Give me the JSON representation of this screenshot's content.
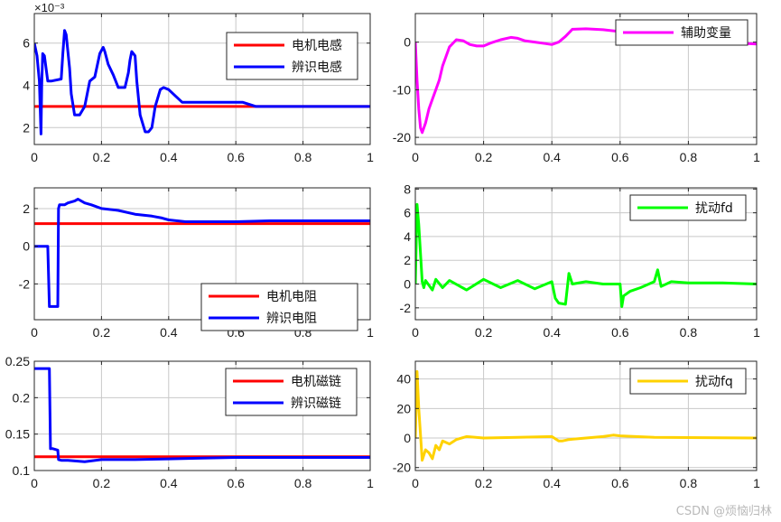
{
  "watermark": "CSDN @烦恼归林",
  "colors": {
    "red": "#ff0000",
    "blue": "#0000ff",
    "magenta": "#ff00ff",
    "green": "#00ff00",
    "yellow": "#ffd200",
    "grid": "#c8c8c8",
    "axis": "#262626"
  },
  "chart_data": [
    {
      "id": "inductance",
      "type": "line",
      "exponent_label": "×10⁻³",
      "xlim": [
        0,
        1
      ],
      "ylim": [
        1.2,
        7.4
      ],
      "xticks": [
        0,
        0.2,
        0.4,
        0.6,
        0.8,
        1
      ],
      "xtick_labels": [
        "0",
        "0.2",
        "0.4",
        "0.6",
        "0.8",
        "1"
      ],
      "yticks": [
        2,
        4,
        6
      ],
      "ytick_labels": [
        "2",
        "4",
        "6"
      ],
      "grid": true,
      "legend_position": "top-right",
      "series": [
        {
          "name": "电机电感",
          "color": "#ff0000",
          "x": [
            0,
            1
          ],
          "y": [
            3.0,
            3.0
          ]
        },
        {
          "name": "辨识电感",
          "color": "#0000ff",
          "x": [
            0,
            0.008,
            0.015,
            0.02,
            0.022,
            0.025,
            0.03,
            0.04,
            0.05,
            0.08,
            0.085,
            0.09,
            0.095,
            0.1,
            0.105,
            0.11,
            0.12,
            0.125,
            0.135,
            0.15,
            0.165,
            0.18,
            0.195,
            0.205,
            0.21,
            0.22,
            0.235,
            0.25,
            0.27,
            0.28,
            0.285,
            0.29,
            0.3,
            0.305,
            0.315,
            0.33,
            0.34,
            0.35,
            0.36,
            0.375,
            0.385,
            0.4,
            0.42,
            0.44,
            0.6,
            0.62,
            0.64,
            0.66,
            0.7,
            1.0
          ],
          "y": [
            6.0,
            5.4,
            4.2,
            1.7,
            4.0,
            5.5,
            5.4,
            4.2,
            4.2,
            4.3,
            5.5,
            6.6,
            6.4,
            5.6,
            4.8,
            3.6,
            2.6,
            2.6,
            2.6,
            3.0,
            4.2,
            4.4,
            5.5,
            5.8,
            5.6,
            5.0,
            4.5,
            3.9,
            3.9,
            4.6,
            5.2,
            5.6,
            5.4,
            4.2,
            2.6,
            1.8,
            1.8,
            2.0,
            3.0,
            3.8,
            3.9,
            3.8,
            3.5,
            3.2,
            3.2,
            3.2,
            3.1,
            3.0,
            3.0,
            3.0
          ]
        }
      ]
    },
    {
      "id": "aux",
      "type": "line",
      "xlim": [
        0,
        1
      ],
      "ylim": [
        -21.5,
        6
      ],
      "xticks": [
        0,
        0.2,
        0.4,
        0.6,
        0.8,
        1
      ],
      "xtick_labels": [
        "0",
        "0.2",
        "0.4",
        "0.6",
        "0.8",
        "1"
      ],
      "yticks": [
        -20,
        -10,
        0
      ],
      "ytick_labels": [
        "-20",
        "-10",
        "0"
      ],
      "grid": true,
      "legend_position": "top-right",
      "series": [
        {
          "name": "辅助变量",
          "color": "#ff00ff",
          "x": [
            0,
            0.005,
            0.01,
            0.015,
            0.02,
            0.03,
            0.04,
            0.05,
            0.06,
            0.07,
            0.08,
            0.09,
            0.1,
            0.12,
            0.14,
            0.16,
            0.18,
            0.2,
            0.22,
            0.25,
            0.28,
            0.3,
            0.32,
            0.35,
            0.38,
            0.4,
            0.42,
            0.44,
            0.46,
            0.5,
            0.55,
            0.6,
            0.65,
            0.7,
            0.75,
            0.8,
            0.85,
            0.9,
            0.95,
            1.0
          ],
          "y": [
            0,
            -8,
            -14,
            -18,
            -19,
            -17,
            -14,
            -12,
            -10,
            -8,
            -5,
            -3,
            -1,
            0.5,
            0.3,
            -0.5,
            -0.8,
            -0.8,
            -0.2,
            0.5,
            1.0,
            0.8,
            0.3,
            0,
            -0.3,
            -0.5,
            0,
            1.2,
            2.7,
            2.8,
            2.6,
            2.2,
            1.6,
            1.3,
            1.0,
            0.6,
            0.4,
            0.1,
            -0.2,
            -0.4
          ]
        }
      ]
    },
    {
      "id": "resistance",
      "type": "line",
      "xlim": [
        0,
        1
      ],
      "ylim": [
        -3.9,
        3.1
      ],
      "xticks": [
        0,
        0.2,
        0.4,
        0.6,
        0.8,
        1
      ],
      "xtick_labels": [
        "0",
        "0.2",
        "0.4",
        "0.6",
        "0.8",
        "1"
      ],
      "yticks": [
        -2,
        0,
        2
      ],
      "ytick_labels": [
        "-2",
        "0",
        "2"
      ],
      "grid": true,
      "legend_position": "bottom-right",
      "series": [
        {
          "name": "电机电阻",
          "color": "#ff0000",
          "x": [
            0,
            1
          ],
          "y": [
            1.2,
            1.2
          ]
        },
        {
          "name": "辨识电阻",
          "color": "#0000ff",
          "x": [
            0,
            0.038,
            0.04,
            0.045,
            0.07,
            0.072,
            0.075,
            0.09,
            0.1,
            0.12,
            0.13,
            0.15,
            0.17,
            0.2,
            0.25,
            0.3,
            0.35,
            0.38,
            0.4,
            0.45,
            0.5,
            0.6,
            0.7,
            0.8,
            1.0
          ],
          "y": [
            0,
            0,
            0,
            -3.2,
            -3.2,
            2.0,
            2.2,
            2.2,
            2.3,
            2.4,
            2.5,
            2.3,
            2.2,
            2.0,
            1.9,
            1.7,
            1.6,
            1.5,
            1.4,
            1.3,
            1.3,
            1.3,
            1.35,
            1.35,
            1.35
          ]
        }
      ]
    },
    {
      "id": "fd",
      "type": "line",
      "xlim": [
        0,
        1
      ],
      "ylim": [
        -3,
        8.1
      ],
      "xticks": [
        0,
        0.2,
        0.4,
        0.6,
        0.8,
        1
      ],
      "xtick_labels": [
        "0",
        "0.2",
        "0.4",
        "0.6",
        "0.8",
        "1"
      ],
      "yticks": [
        -2,
        0,
        2,
        4,
        6,
        8
      ],
      "ytick_labels": [
        "-2",
        "0",
        "2",
        "4",
        "6",
        "8"
      ],
      "grid": true,
      "legend_position": "top-right",
      "series": [
        {
          "name": "扰动fd",
          "color": "#00ff00",
          "x": [
            0,
            0.005,
            0.01,
            0.02,
            0.025,
            0.03,
            0.05,
            0.06,
            0.08,
            0.1,
            0.15,
            0.2,
            0.25,
            0.3,
            0.35,
            0.4,
            0.41,
            0.42,
            0.44,
            0.45,
            0.46,
            0.5,
            0.55,
            0.6,
            0.605,
            0.61,
            0.63,
            0.66,
            0.7,
            0.71,
            0.72,
            0.75,
            0.8,
            0.9,
            1.0
          ],
          "y": [
            0,
            6.7,
            5.0,
            0.2,
            -0.3,
            0.3,
            -0.5,
            0.4,
            -0.3,
            0.3,
            -0.5,
            0.4,
            -0.3,
            0.3,
            -0.4,
            0.2,
            -1.2,
            -1.6,
            -1.7,
            0.9,
            0,
            0.2,
            0,
            0,
            -1.9,
            -1.0,
            -0.6,
            -0.3,
            0.2,
            1.2,
            -0.2,
            0.2,
            0.1,
            0.1,
            0
          ]
        }
      ]
    },
    {
      "id": "flux",
      "type": "line",
      "xlim": [
        0,
        1
      ],
      "ylim": [
        0.1,
        0.25
      ],
      "xticks": [
        0,
        0.2,
        0.4,
        0.6,
        0.8,
        1
      ],
      "xtick_labels": [
        "0",
        "0.2",
        "0.4",
        "0.6",
        "0.8",
        "1"
      ],
      "yticks": [
        0.1,
        0.15,
        0.2,
        0.25
      ],
      "ytick_labels": [
        "0.1",
        "0.15",
        "0.2",
        "0.25"
      ],
      "grid": true,
      "legend_position": "top-right",
      "series": [
        {
          "name": "电机磁链",
          "color": "#ff0000",
          "x": [
            0,
            1
          ],
          "y": [
            0.119,
            0.119
          ]
        },
        {
          "name": "辨识磁链",
          "color": "#0000ff",
          "x": [
            0,
            0.045,
            0.048,
            0.055,
            0.07,
            0.072,
            0.08,
            0.1,
            0.15,
            0.2,
            0.3,
            0.4,
            0.5,
            0.6,
            0.7,
            1.0
          ],
          "y": [
            0.24,
            0.24,
            0.13,
            0.13,
            0.128,
            0.115,
            0.114,
            0.114,
            0.112,
            0.115,
            0.115,
            0.116,
            0.117,
            0.118,
            0.118,
            0.118
          ]
        }
      ]
    },
    {
      "id": "fq",
      "type": "line",
      "xlim": [
        0,
        1
      ],
      "ylim": [
        -22,
        52
      ],
      "xticks": [
        0,
        0.2,
        0.4,
        0.6,
        0.8,
        1
      ],
      "xtick_labels": [
        "0",
        "0.2",
        "0.4",
        "0.6",
        "0.8",
        "1"
      ],
      "yticks": [
        -20,
        0,
        20,
        40
      ],
      "ytick_labels": [
        "-20",
        "0",
        "20",
        "40"
      ],
      "grid": true,
      "legend_position": "top-right",
      "series": [
        {
          "name": "扰动fq",
          "color": "#ffd200",
          "x": [
            0,
            0.005,
            0.01,
            0.02,
            0.03,
            0.04,
            0.05,
            0.06,
            0.07,
            0.08,
            0.1,
            0.12,
            0.15,
            0.2,
            0.3,
            0.4,
            0.42,
            0.43,
            0.45,
            0.5,
            0.55,
            0.58,
            0.6,
            0.7,
            1.0
          ],
          "y": [
            0,
            45,
            20,
            -15,
            -8,
            -10,
            -14,
            -5,
            -8,
            -2,
            -4,
            -1,
            1,
            0,
            0.5,
            1,
            -2,
            -2,
            -1,
            0,
            1,
            2,
            1.5,
            0.5,
            0
          ]
        }
      ]
    }
  ]
}
